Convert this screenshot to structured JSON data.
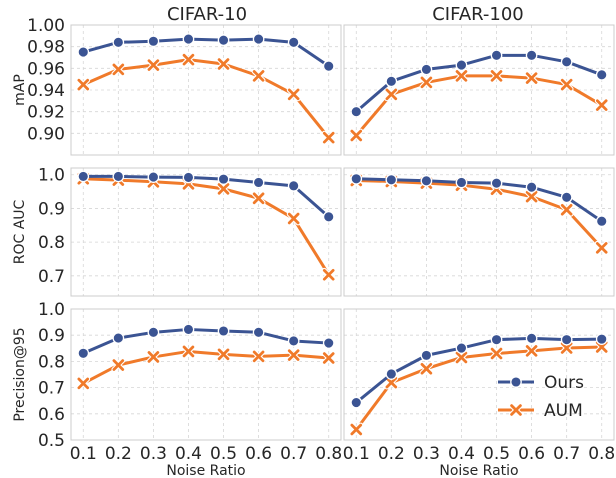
{
  "colors": {
    "ours": "#3b5493",
    "aum": "#f07a2a"
  },
  "legend": {
    "placement": "lower-right",
    "panel": "precision-cifar100",
    "items": [
      {
        "label": "Ours",
        "series": "ours",
        "marker": "circle"
      },
      {
        "label": "AUM",
        "series": "aum",
        "marker": "x"
      }
    ]
  },
  "columns": [
    "CIFAR-10",
    "CIFAR-100"
  ],
  "row_labels": [
    "mAP",
    "ROC AUC",
    "Precision@95"
  ],
  "xlabel": "Noise Ratio",
  "chart_data": [
    {
      "id": "map-cifar10",
      "type": "line",
      "title": "CIFAR-10",
      "ylabel": "mAP",
      "xlabel": "",
      "x": [
        0.1,
        0.2,
        0.3,
        0.4,
        0.5,
        0.6,
        0.7,
        0.8
      ],
      "xlim": [
        0.065,
        0.835
      ],
      "ylim": [
        0.88,
        1.0
      ],
      "yticks": [
        "0.90",
        "0.92",
        "0.94",
        "0.96",
        "0.98",
        "1.00"
      ],
      "grid": true,
      "series": [
        {
          "key": "ours",
          "name": "Ours",
          "values": [
            0.975,
            0.984,
            0.985,
            0.987,
            0.986,
            0.987,
            0.984,
            0.962
          ]
        },
        {
          "key": "aum",
          "name": "AUM",
          "values": [
            0.945,
            0.959,
            0.963,
            0.968,
            0.964,
            0.953,
            0.936,
            0.896
          ]
        }
      ]
    },
    {
      "id": "map-cifar100",
      "type": "line",
      "title": "CIFAR-100",
      "ylabel": "",
      "xlabel": "",
      "x": [
        0.1,
        0.2,
        0.3,
        0.4,
        0.5,
        0.6,
        0.7,
        0.8
      ],
      "xlim": [
        0.065,
        0.835
      ],
      "ylim": [
        0.88,
        1.0
      ],
      "yticks": [],
      "grid": true,
      "series": [
        {
          "key": "ours",
          "name": "Ours",
          "values": [
            0.92,
            0.948,
            0.959,
            0.963,
            0.972,
            0.972,
            0.966,
            0.954
          ]
        },
        {
          "key": "aum",
          "name": "AUM",
          "values": [
            0.898,
            0.936,
            0.947,
            0.953,
            0.953,
            0.951,
            0.945,
            0.926
          ]
        }
      ]
    },
    {
      "id": "roc-cifar10",
      "type": "line",
      "title": "",
      "ylabel": "ROC AUC",
      "xlabel": "",
      "x": [
        0.1,
        0.2,
        0.3,
        0.4,
        0.5,
        0.6,
        0.7,
        0.8
      ],
      "xlim": [
        0.065,
        0.835
      ],
      "ylim": [
        0.64,
        1.02
      ],
      "yticks": [
        "0.7",
        "0.8",
        "0.9",
        "1.0"
      ],
      "grid": true,
      "series": [
        {
          "key": "ours",
          "name": "Ours",
          "values": [
            0.995,
            0.995,
            0.993,
            0.992,
            0.987,
            0.977,
            0.967,
            0.875
          ]
        },
        {
          "key": "aum",
          "name": "AUM",
          "values": [
            0.988,
            0.984,
            0.979,
            0.973,
            0.958,
            0.93,
            0.87,
            0.703
          ]
        }
      ]
    },
    {
      "id": "roc-cifar100",
      "type": "line",
      "title": "",
      "ylabel": "",
      "xlabel": "",
      "x": [
        0.1,
        0.2,
        0.3,
        0.4,
        0.5,
        0.6,
        0.7,
        0.8
      ],
      "xlim": [
        0.065,
        0.835
      ],
      "ylim": [
        0.64,
        1.02
      ],
      "yticks": [],
      "grid": true,
      "series": [
        {
          "key": "ours",
          "name": "Ours",
          "values": [
            0.988,
            0.985,
            0.982,
            0.977,
            0.975,
            0.963,
            0.933,
            0.862
          ]
        },
        {
          "key": "aum",
          "name": "AUM",
          "values": [
            0.983,
            0.98,
            0.975,
            0.969,
            0.957,
            0.935,
            0.896,
            0.783
          ]
        }
      ]
    },
    {
      "id": "precision-cifar10",
      "type": "line",
      "title": "",
      "ylabel": "Precision@95",
      "xlabel": "Noise Ratio",
      "x": [
        0.1,
        0.2,
        0.3,
        0.4,
        0.5,
        0.6,
        0.7,
        0.8
      ],
      "xlim": [
        0.065,
        0.835
      ],
      "ylim": [
        0.5,
        1.0
      ],
      "yticks": [
        "0.5",
        "0.6",
        "0.7",
        "0.8",
        "0.9",
        "1.0"
      ],
      "xticks": [
        "0.1",
        "0.2",
        "0.3",
        "0.4",
        "0.5",
        "0.6",
        "0.7",
        "0.8"
      ],
      "grid": true,
      "series": [
        {
          "key": "ours",
          "name": "Ours",
          "values": [
            0.831,
            0.889,
            0.911,
            0.922,
            0.916,
            0.911,
            0.878,
            0.87
          ]
        },
        {
          "key": "aum",
          "name": "AUM",
          "values": [
            0.716,
            0.786,
            0.817,
            0.838,
            0.827,
            0.819,
            0.824,
            0.813
          ]
        }
      ]
    },
    {
      "id": "precision-cifar100",
      "type": "line",
      "title": "",
      "ylabel": "",
      "xlabel": "Noise Ratio",
      "x": [
        0.1,
        0.2,
        0.3,
        0.4,
        0.5,
        0.6,
        0.7,
        0.8
      ],
      "xlim": [
        0.065,
        0.835
      ],
      "ylim": [
        0.5,
        1.0
      ],
      "yticks": [],
      "xticks": [
        "0.1",
        "0.2",
        "0.3",
        "0.4",
        "0.5",
        "0.6",
        "0.7",
        "0.8"
      ],
      "grid": true,
      "series": [
        {
          "key": "ours",
          "name": "Ours",
          "values": [
            0.643,
            0.752,
            0.823,
            0.851,
            0.883,
            0.888,
            0.883,
            0.885
          ]
        },
        {
          "key": "aum",
          "name": "AUM",
          "values": [
            0.54,
            0.719,
            0.772,
            0.815,
            0.83,
            0.84,
            0.851,
            0.855
          ]
        }
      ]
    }
  ]
}
